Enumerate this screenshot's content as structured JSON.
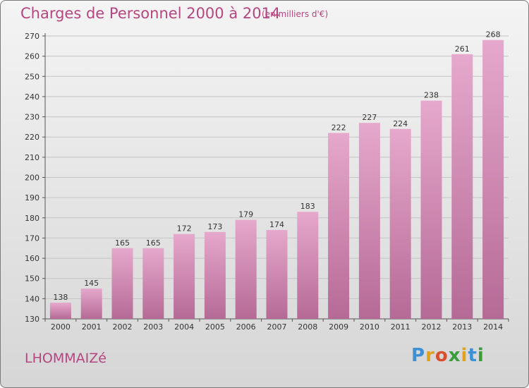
{
  "header": {
    "title": "Charges de Personnel 2000 à 2014",
    "subtitle": "(en milliers d'€)"
  },
  "footer": {
    "town": "LHOMMAIZé",
    "brand": "Proxiti"
  },
  "colors": {
    "title": "#b5467f",
    "bar_top": "#e6a8cc",
    "bar_bottom": "#b56a96"
  },
  "chart_data": {
    "type": "bar",
    "title": "Charges de Personnel 2000 à 2014",
    "subtitle": "(en milliers d'€)",
    "categories": [
      "2000",
      "2001",
      "2002",
      "2003",
      "2004",
      "2005",
      "2006",
      "2007",
      "2008",
      "2009",
      "2010",
      "2011",
      "2012",
      "2013",
      "2014"
    ],
    "values": [
      138,
      145,
      165,
      165,
      172,
      173,
      179,
      174,
      183,
      222,
      227,
      224,
      238,
      261,
      268
    ],
    "ylim": [
      130,
      270
    ],
    "yticks": [
      130,
      140,
      150,
      160,
      170,
      180,
      190,
      200,
      210,
      220,
      230,
      240,
      250,
      260,
      270
    ],
    "grid": true,
    "data_labels": true
  }
}
